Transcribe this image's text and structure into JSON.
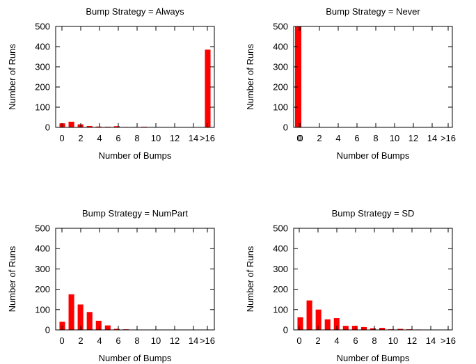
{
  "chart_data": [
    {
      "type": "bar",
      "title": "Bump Strategy = Always",
      "xlabel": "Number of Bumps",
      "ylabel": "Number of Runs",
      "ylim": [
        0,
        500
      ],
      "yticks": [
        "0",
        "100",
        "200",
        "300",
        "400",
        "500"
      ],
      "xticks": [
        "0",
        "2",
        "4",
        "6",
        "8",
        "10",
        "12",
        "14",
        ">16"
      ],
      "categories": [
        "0",
        "1",
        "2",
        "3",
        "4",
        "5",
        "6",
        "7",
        "8",
        "9",
        "10",
        "11",
        "12",
        "13",
        "14",
        "15",
        ">16"
      ],
      "values": [
        20,
        28,
        15,
        7,
        4,
        3,
        6,
        2,
        2,
        3,
        1,
        1,
        1,
        1,
        1,
        1,
        385
      ],
      "grid": false
    },
    {
      "type": "bar",
      "title": "Bump Strategy = Never",
      "xlabel": "Number of Bumps",
      "ylabel": "Number of Runs",
      "ylim": [
        0,
        500
      ],
      "yticks": [
        "0",
        "100",
        "200",
        "300",
        "400",
        "500"
      ],
      "xticks": [
        "0",
        "0",
        "2",
        "4",
        "6",
        "8",
        "10",
        "12",
        "14",
        ">16"
      ],
      "categories": [
        "0"
      ],
      "values": [
        500
      ],
      "grid": false
    },
    {
      "type": "bar",
      "title": "Bump Strategy = NumPart",
      "xlabel": "Number of Bumps",
      "ylabel": "Number of Runs",
      "ylim": [
        0,
        500
      ],
      "yticks": [
        "0",
        "100",
        "200",
        "300",
        "400",
        "500"
      ],
      "xticks": [
        "0",
        "2",
        "4",
        "6",
        "8",
        "10",
        "12",
        "14",
        ">16"
      ],
      "categories": [
        "0",
        "1",
        "2",
        "3",
        "4",
        "5",
        "6",
        "7",
        "8",
        "9",
        "10",
        "11",
        "12",
        "13",
        "14",
        "15",
        ">16"
      ],
      "values": [
        40,
        175,
        125,
        88,
        45,
        22,
        5,
        3,
        1,
        1,
        1,
        0,
        0,
        0,
        0,
        0,
        0
      ],
      "grid": false
    },
    {
      "type": "bar",
      "title": "Bump Strategy = SD",
      "xlabel": "Number of Bumps",
      "ylabel": "Number of Runs",
      "ylim": [
        0,
        500
      ],
      "yticks": [
        "0",
        "100",
        "200",
        "300",
        "400",
        "500"
      ],
      "xticks": [
        "0",
        "2",
        "4",
        "6",
        "8",
        "10",
        "12",
        "14",
        ">16"
      ],
      "categories": [
        "0",
        "1",
        "2",
        "3",
        "4",
        "5",
        "6",
        "7",
        "8",
        "9",
        "10",
        "11",
        "12",
        "13",
        "14",
        "15",
        ">16"
      ],
      "values": [
        62,
        145,
        100,
        52,
        58,
        20,
        20,
        14,
        8,
        10,
        3,
        5,
        3,
        2,
        1,
        0,
        0
      ],
      "grid": false
    }
  ],
  "colors": {
    "bar": "#ff0000",
    "axis": "#000000"
  }
}
